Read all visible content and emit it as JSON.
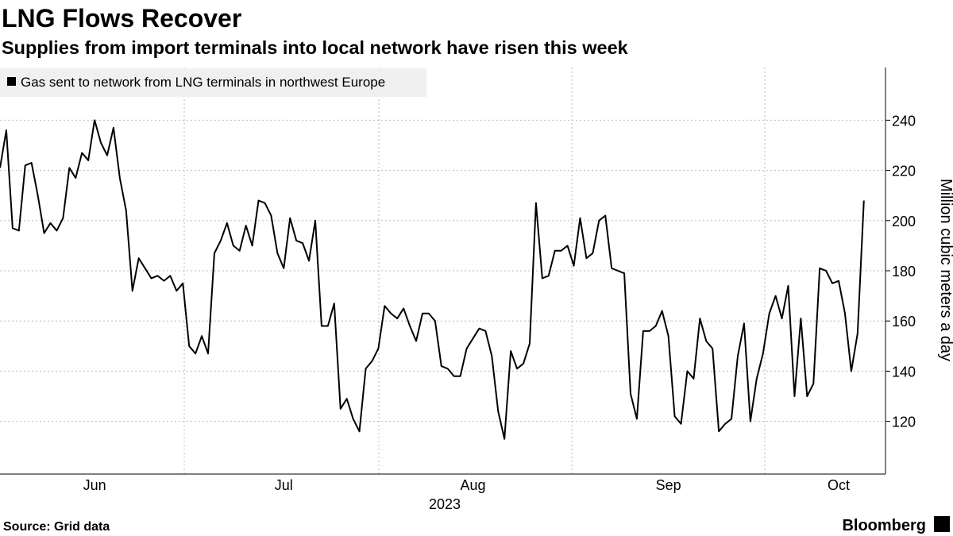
{
  "chart_data": {
    "type": "line",
    "title": "LNG Flows Recover",
    "subtitle": "Supplies from import terminals into local network have risen this week",
    "y_label": "Million cubic meters a day",
    "x_label": "2023",
    "source": "Source: Grid data",
    "brand": "Bloomberg",
    "categories": [
      null,
      null,
      null,
      null,
      null,
      null,
      null,
      null,
      null,
      null,
      null,
      null,
      null,
      null,
      null,
      "Jun",
      null,
      null,
      null,
      null,
      null,
      null,
      null,
      null,
      null,
      null,
      null,
      null,
      null,
      null,
      null,
      null,
      null,
      null,
      null,
      null,
      null,
      null,
      null,
      null,
      null,
      null,
      null,
      null,
      null,
      "Jul",
      null,
      null,
      null,
      null,
      null,
      null,
      null,
      null,
      null,
      null,
      null,
      null,
      null,
      null,
      null,
      null,
      null,
      null,
      null,
      null,
      null,
      null,
      null,
      null,
      null,
      null,
      null,
      null,
      null,
      "Aug",
      null,
      null,
      null,
      null,
      null,
      null,
      null,
      null,
      null,
      null,
      null,
      null,
      null,
      null,
      null,
      null,
      null,
      null,
      null,
      null,
      null,
      null,
      null,
      null,
      null,
      null,
      null,
      null,
      null,
      null,
      "Sep",
      null,
      null,
      null,
      null,
      null,
      null,
      null,
      null,
      null,
      null,
      null,
      null,
      null,
      null,
      null,
      null,
      null,
      null,
      null,
      null,
      null,
      null,
      null,
      null,
      null,
      null,
      "Oct",
      null,
      null,
      null,
      null
    ],
    "series": [
      {
        "name": "Gas sent to network from LNG terminals in northwest Europe",
        "color": "#000000",
        "values": [
          221,
          236,
          197,
          196,
          222,
          223,
          210,
          195,
          199,
          196,
          201,
          221,
          217,
          227,
          224,
          240,
          231,
          226,
          237,
          217,
          204,
          172,
          185,
          181,
          177,
          178,
          176,
          178,
          172,
          175,
          150,
          147,
          154,
          147,
          187,
          192,
          199,
          190,
          188,
          198,
          190,
          208,
          207,
          202,
          187,
          181,
          201,
          192,
          191,
          184,
          200,
          158,
          158,
          167,
          125,
          129,
          121,
          116,
          141,
          144,
          149,
          166,
          163,
          161,
          165,
          158,
          152,
          163,
          163,
          160,
          142,
          141,
          138,
          138,
          149,
          153,
          157,
          156,
          146,
          124,
          113,
          148,
          141,
          143,
          151,
          207,
          177,
          178,
          188,
          188,
          190,
          182,
          201,
          185,
          187,
          200,
          202,
          181,
          180,
          179,
          131,
          121,
          156,
          156,
          158,
          164,
          154,
          122,
          119,
          140,
          137,
          161,
          152,
          149,
          116,
          119,
          121,
          146,
          159,
          120,
          137,
          147,
          163,
          170,
          161,
          174,
          130,
          161,
          130,
          135,
          181,
          180,
          175,
          176,
          163,
          140,
          155,
          208
        ]
      }
    ],
    "ylim": [
      99,
      261
    ],
    "yticks": [
      120,
      140,
      160,
      180,
      200,
      220,
      240
    ],
    "grid": true,
    "legend": "top-left"
  }
}
